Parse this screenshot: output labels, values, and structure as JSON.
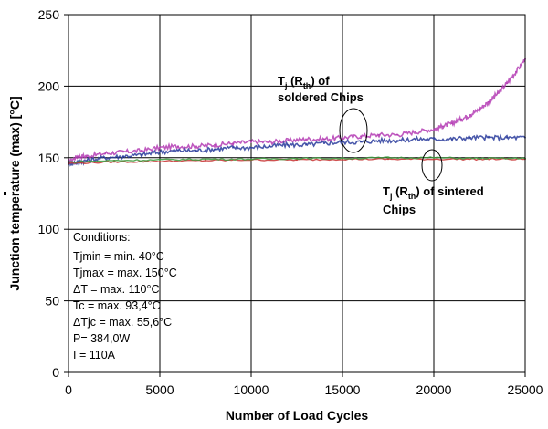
{
  "chart_data": {
    "type": "line",
    "xlabel": "Number of Load Cycles",
    "ylabel": "Junction temperature (max) [°C]",
    "xlim": [
      0,
      25000
    ],
    "ylim": [
      0,
      250
    ],
    "x_ticks": [
      "0",
      "5000",
      "10000",
      "15000",
      "20000",
      "25000"
    ],
    "y_ticks": [
      "0",
      "50",
      "100",
      "150",
      "200",
      "250"
    ],
    "grid": true,
    "series": [
      {
        "color": "#b43cb4",
        "x": [
          0,
          500,
          1000,
          2000,
          3000,
          4000,
          5000,
          6000,
          7000,
          8000,
          9000,
          10000,
          11000,
          12000,
          13000,
          14000,
          15000,
          16000,
          17000,
          18000,
          19000,
          20000,
          20500,
          21000,
          21500,
          22000,
          22500,
          23000,
          23500,
          24000,
          24500,
          25000
        ],
        "values": [
          147,
          151,
          151,
          153,
          154,
          155,
          157,
          158,
          158,
          159,
          160,
          161,
          161,
          162,
          163,
          163,
          164,
          165,
          166,
          166,
          168,
          170,
          172,
          174,
          177,
          180,
          184,
          189,
          195,
          202,
          210,
          219
        ]
      },
      {
        "color": "#2a3c9c",
        "x": [
          0,
          500,
          1000,
          2000,
          3000,
          4000,
          5000,
          6000,
          7000,
          8000,
          9000,
          10000,
          11000,
          12000,
          13000,
          14000,
          15000,
          16000,
          17000,
          18000,
          19000,
          20000,
          21000,
          22000,
          23000,
          24000,
          25000
        ],
        "values": [
          146,
          147,
          148,
          150,
          151,
          152,
          154,
          155,
          155,
          156,
          157,
          157,
          158,
          159,
          159,
          160,
          161,
          161,
          162,
          162,
          163,
          163,
          163,
          164,
          164,
          164,
          164
        ]
      },
      {
        "color": "#c83232",
        "x": [
          0,
          2500,
          5000,
          7500,
          10000,
          12500,
          15000,
          17500,
          20000,
          22500,
          25000
        ],
        "values": [
          146,
          147,
          147.5,
          148,
          148.5,
          148.5,
          149,
          149,
          149,
          149,
          149
        ]
      },
      {
        "color": "#3c9a3c",
        "x": [
          0,
          2500,
          5000,
          7500,
          10000,
          12500,
          15000,
          17500,
          20000,
          22500,
          25000
        ],
        "values": [
          147,
          148,
          148.5,
          149,
          149,
          149.5,
          149.5,
          150,
          150,
          149.5,
          149.5
        ]
      }
    ],
    "annotations": {
      "soldered": {
        "t": "T",
        "t_sub": "j",
        "mid": " (R",
        "r_sub": "th",
        "end": ") of",
        "line2": "soldered Chips"
      },
      "sintered": {
        "t": "T",
        "t_sub": "j",
        "mid": " (R",
        "r_sub": "th",
        "end": ") of sintered",
        "line2": "Chips"
      }
    },
    "conditions": {
      "title": "Conditions:",
      "lines": [
        "Tjmin = min. 40°C",
        "Tjmax = max. 150°C",
        "ΔT = max. 110°C",
        "Tc = max. 93,4°C",
        "ΔTjc = max. 55,6°C",
        "P= 384,0W",
        "I = 110A"
      ]
    }
  }
}
